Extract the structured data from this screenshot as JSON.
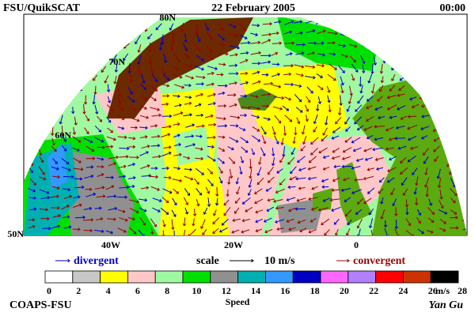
{
  "header": {
    "left": "FSU/QuikSCAT",
    "title": "22 February 2005",
    "time": "00:00"
  },
  "grid_labels": {
    "lat": [
      "80N",
      "70N",
      "60N",
      "50N"
    ],
    "lon": [
      "40W",
      "20W",
      "0"
    ]
  },
  "legend": {
    "divergent": "divergent",
    "scale": "scale",
    "scale_value": "10 m/s",
    "convergent": "convergent",
    "divergent_color": "#0000cc",
    "convergent_color": "#990000"
  },
  "colorbar": {
    "ticks": [
      0,
      2,
      4,
      6,
      8,
      10,
      12,
      14,
      16,
      18,
      20,
      22,
      24,
      26,
      28
    ],
    "unit": "m/s",
    "label": "Speed",
    "colors": [
      "#ffffff",
      "#c8c8c8",
      "#ffff00",
      "#ffc8c8",
      "#a0f8a0",
      "#00e000",
      "#909090",
      "#00b0b0",
      "#3399ff",
      "#0000c0",
      "#ff66ff",
      "#b080ff",
      "#ff0000",
      "#cc3300",
      "#000000"
    ]
  },
  "footer": {
    "left": "COAPS-FSU",
    "signature": "Yan Gu"
  }
}
